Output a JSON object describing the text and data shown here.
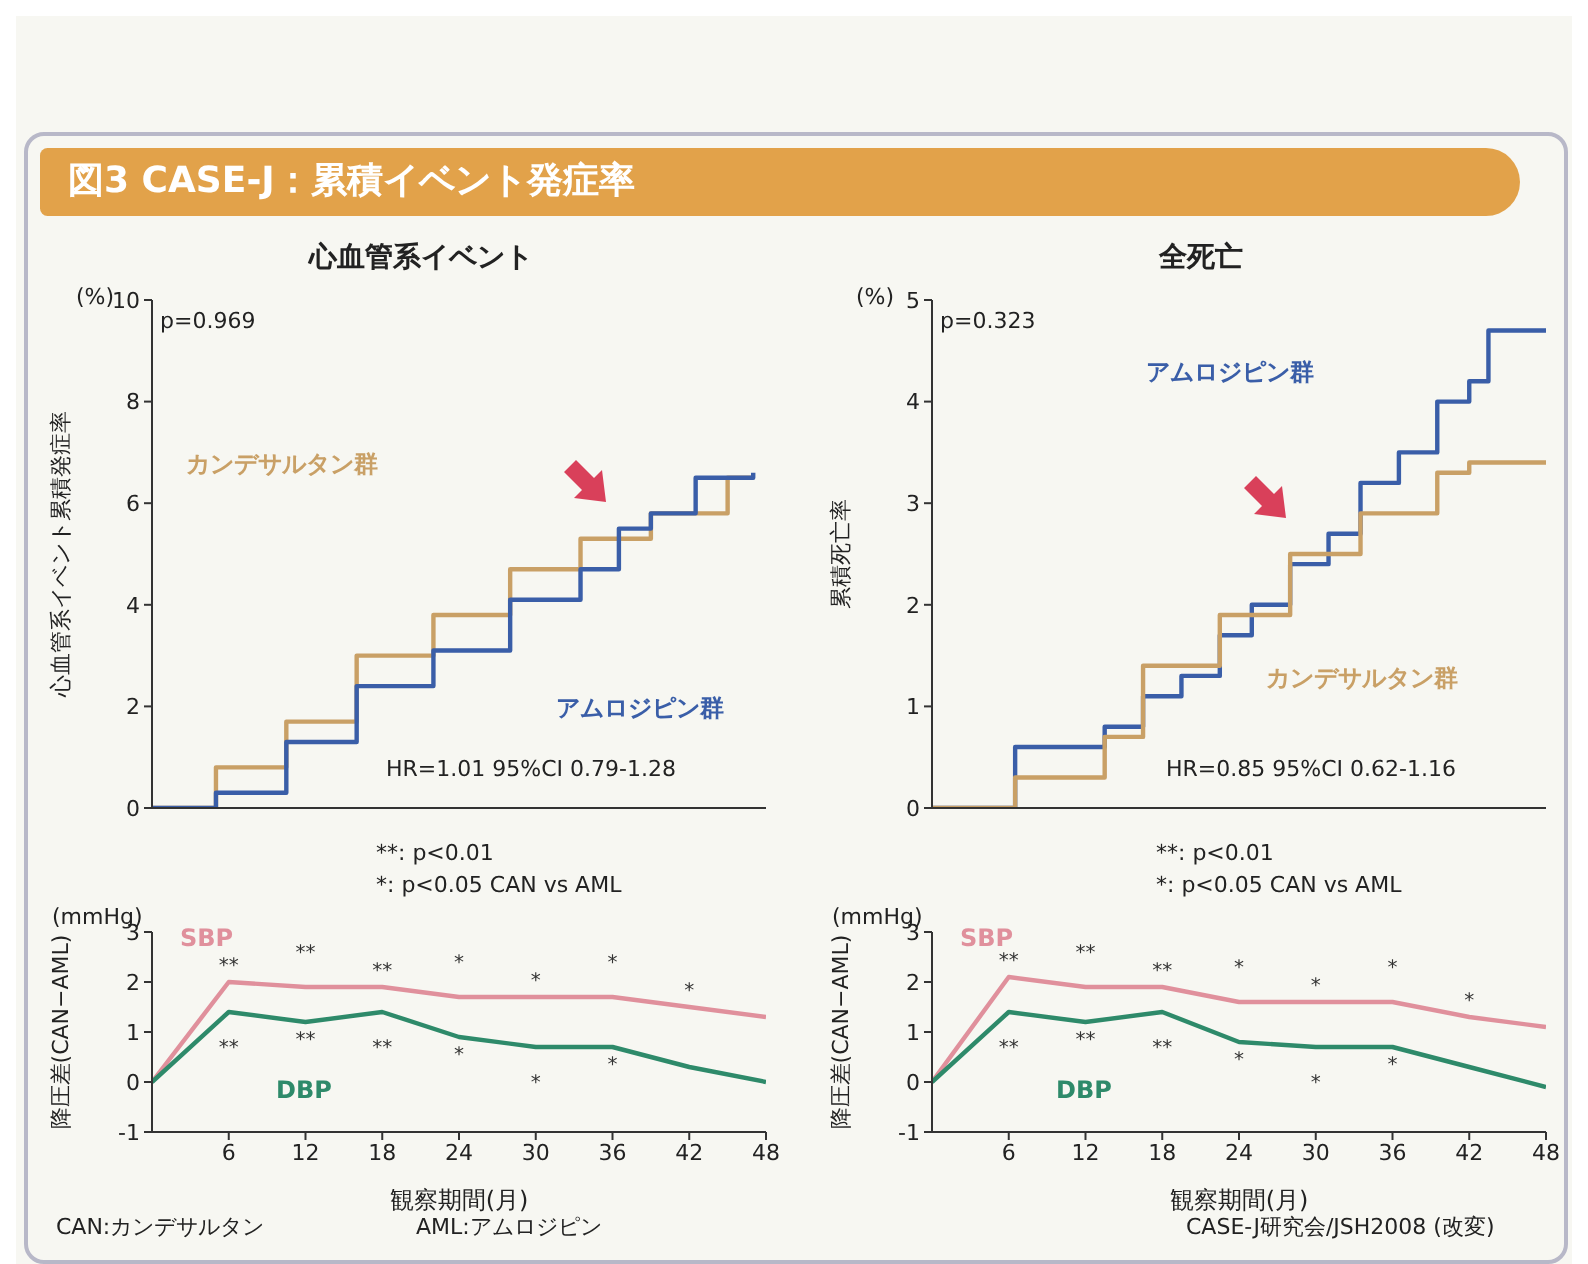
{
  "chart_data": [
    {
      "type": "step",
      "title": "図3 CASE-J：累積イベント発症率",
      "subtitle": "心血管系イベント",
      "ylabel": "心血管系イベント累積発症率",
      "annotations": [
        "(%)",
        "p=0.969",
        "HR=1.01  95%CI 0.79-1.28"
      ],
      "xlim": [
        0,
        48
      ],
      "xticks": [
        6,
        12,
        18,
        24,
        30,
        36,
        42,
        48
      ],
      "ylim": [
        0,
        10
      ],
      "yticks": [
        0,
        2,
        4,
        6,
        8,
        10
      ],
      "tick_labels": "y",
      "legend": false,
      "grid": false,
      "marker": "none",
      "series": [
        {
          "name": "カンデサルタン群",
          "color": "#c9a066",
          "x": [
            0,
            1.5,
            5,
            10.5,
            16,
            22,
            28,
            33.5,
            39,
            45,
            47
          ],
          "values": [
            0,
            0,
            0.8,
            1.7,
            3.0,
            3.8,
            4.7,
            5.3,
            5.8,
            6.5,
            6.5
          ]
        },
        {
          "name": "アムロジピン群",
          "color": "#3a5ea8",
          "x": [
            0,
            3,
            5,
            10.5,
            16,
            22,
            28,
            33.5,
            36.5,
            39,
            42.5,
            47
          ],
          "values": [
            0,
            0,
            0.3,
            1.3,
            2.4,
            3.1,
            4.1,
            4.7,
            5.5,
            5.8,
            6.5,
            6.6
          ]
        }
      ]
    },
    {
      "type": "step",
      "title": "全死亡",
      "ylabel": "累積死亡率",
      "annotations": [
        "(%)",
        "p=0.323",
        "HR=0.85  95%CI 0.62-1.16"
      ],
      "xlim": [
        0,
        48
      ],
      "xticks": [
        6,
        12,
        18,
        24,
        30,
        36,
        42,
        48
      ],
      "ylim": [
        0,
        5
      ],
      "yticks": [
        0,
        1,
        2,
        3,
        4,
        5
      ],
      "tick_labels": "y",
      "legend": false,
      "grid": false,
      "marker": "none",
      "series": [
        {
          "name": "アムロジピン群",
          "color": "#3a5ea8",
          "x": [
            0,
            6.5,
            13.5,
            16.5,
            19.5,
            22.5,
            25,
            28,
            31,
            33.5,
            36.5,
            39.5,
            42,
            43.5,
            48
          ],
          "values": [
            0,
            0.6,
            0.8,
            1.1,
            1.3,
            1.7,
            2.0,
            2.4,
            2.7,
            3.2,
            3.5,
            4.0,
            4.2,
            4.7,
            4.7
          ]
        },
        {
          "name": "カンデサルタン群",
          "color": "#c9a066",
          "x": [
            0,
            6.5,
            13.5,
            16.5,
            22.5,
            28,
            33.5,
            39.5,
            42,
            48
          ],
          "values": [
            0,
            0.3,
            0.7,
            1.4,
            1.9,
            2.5,
            2.9,
            3.3,
            3.4,
            3.4
          ]
        }
      ]
    },
    {
      "type": "line",
      "xlabel": "観察期間(月)",
      "ylabel": "降圧差(CAN−AML)",
      "annotations": [
        "(mmHg)",
        "**: p<0.01",
        "*: p<0.05  CAN vs AML",
        "CAN:カンデサルタン",
        "AML:アムロジピン",
        {
          "text": "**",
          "x": 6,
          "y": 2.0
        },
        {
          "text": "**",
          "x": 12,
          "y": 1.9
        },
        {
          "text": "**",
          "x": 18,
          "y": 1.9
        },
        {
          "text": "*",
          "x": 24,
          "y": 1.7
        },
        {
          "text": "*",
          "x": 30,
          "y": 1.7
        },
        {
          "text": "*",
          "x": 36,
          "y": 1.7
        },
        {
          "text": "*",
          "x": 42,
          "y": 1.5
        },
        {
          "text": "**",
          "x": 6,
          "y": 1.4
        },
        {
          "text": "**",
          "x": 12,
          "y": 1.2
        },
        {
          "text": "**",
          "x": 18,
          "y": 1.4
        },
        {
          "text": "*",
          "x": 24,
          "y": 0.9
        },
        {
          "text": "*",
          "x": 30,
          "y": 0.7
        },
        {
          "text": "*",
          "x": 36,
          "y": 0.7
        }
      ],
      "xlim": [
        0,
        48
      ],
      "xticks": [
        6,
        12,
        18,
        24,
        30,
        36,
        42,
        48
      ],
      "ylim": [
        -1,
        3
      ],
      "yticks": [
        -1,
        0,
        1,
        2,
        3
      ],
      "legend": false,
      "grid": false,
      "marker": "none",
      "x": [
        0,
        6,
        12,
        18,
        24,
        30,
        36,
        42,
        48
      ],
      "series": [
        {
          "name": "SBP",
          "color": "#e0909c",
          "values": [
            0,
            2.0,
            1.9,
            1.9,
            1.7,
            1.7,
            1.7,
            1.5,
            1.3
          ]
        },
        {
          "name": "DBP",
          "color": "#2e8a6a",
          "values": [
            0,
            1.4,
            1.2,
            1.4,
            0.9,
            0.7,
            0.7,
            0.3,
            0
          ]
        }
      ]
    },
    {
      "type": "line",
      "xlabel": "観察期間(月)",
      "ylabel": "降圧差(CAN−AML)",
      "annotations": [
        "(mmHg)",
        "**: p<0.01",
        "*: p<0.05  CAN vs AML",
        "CASE-J研究会/JSH2008 (改変)",
        {
          "text": "**",
          "x": 6,
          "y": 2.1
        },
        {
          "text": "**",
          "x": 12,
          "y": 1.9
        },
        {
          "text": "**",
          "x": 18,
          "y": 1.9
        },
        {
          "text": "*",
          "x": 24,
          "y": 1.6
        },
        {
          "text": "*",
          "x": 30,
          "y": 1.6
        },
        {
          "text": "*",
          "x": 36,
          "y": 1.6
        },
        {
          "text": "*",
          "x": 42,
          "y": 1.3
        },
        {
          "text": "**",
          "x": 6,
          "y": 1.4
        },
        {
          "text": "**",
          "x": 12,
          "y": 1.2
        },
        {
          "text": "**",
          "x": 18,
          "y": 1.4
        },
        {
          "text": "*",
          "x": 24,
          "y": 0.8
        },
        {
          "text": "*",
          "x": 30,
          "y": 0.7
        },
        {
          "text": "*",
          "x": 36,
          "y": 0.7
        }
      ],
      "xlim": [
        0,
        48
      ],
      "xticks": [
        6,
        12,
        18,
        24,
        30,
        36,
        42,
        48
      ],
      "ylim": [
        -1,
        3
      ],
      "yticks": [
        -1,
        0,
        1,
        2,
        3
      ],
      "legend": false,
      "grid": false,
      "marker": "none",
      "x": [
        0,
        6,
        12,
        18,
        24,
        30,
        36,
        42,
        48
      ],
      "series": [
        {
          "name": "SBP",
          "color": "#e0909c",
          "values": [
            0,
            2.1,
            1.9,
            1.9,
            1.6,
            1.6,
            1.6,
            1.3,
            1.1
          ]
        },
        {
          "name": "DBP",
          "color": "#2e8a6a",
          "values": [
            0,
            1.4,
            1.2,
            1.4,
            0.8,
            0.7,
            0.7,
            0.3,
            -0.1
          ]
        }
      ]
    }
  ]
}
